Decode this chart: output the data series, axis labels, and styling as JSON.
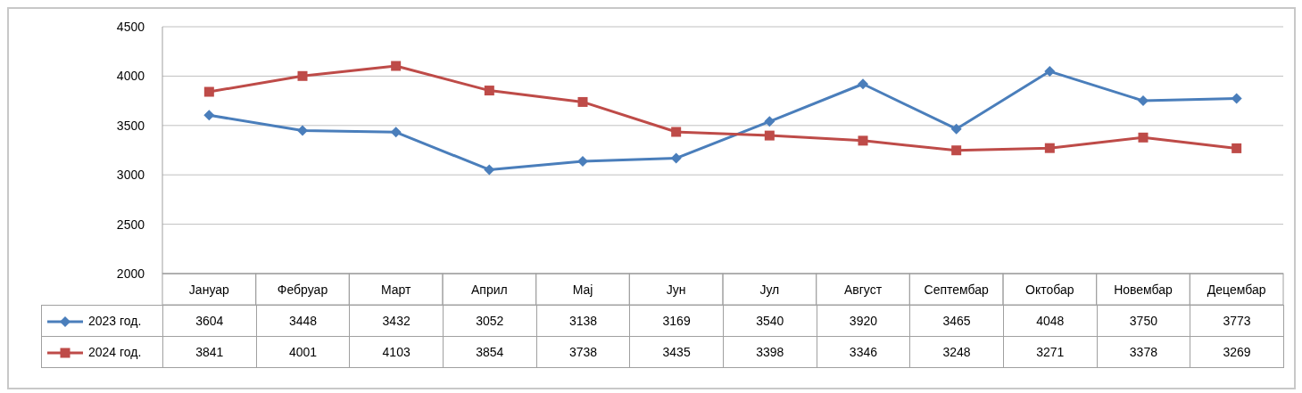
{
  "chart_data": {
    "type": "line",
    "categories": [
      "Јануар",
      "Фебруар",
      "Март",
      "Април",
      "Мај",
      "Јун",
      "Јул",
      "Август",
      "Септембар",
      "Октобар",
      "Новембар",
      "Децембар"
    ],
    "series": [
      {
        "name": "2023 год.",
        "color": "#4a7ebb",
        "marker": "diamond",
        "values": [
          3604,
          3448,
          3432,
          3052,
          3138,
          3169,
          3540,
          3920,
          3465,
          4048,
          3750,
          3773
        ]
      },
      {
        "name": "2024 год.",
        "color": "#be4b48",
        "marker": "square",
        "values": [
          3841,
          4001,
          4103,
          3854,
          3738,
          3435,
          3398,
          3346,
          3248,
          3271,
          3378,
          3269
        ]
      }
    ],
    "ylim": [
      2000,
      4500
    ],
    "yticks": [
      2000,
      2500,
      3000,
      3500,
      4000,
      4500
    ],
    "grid": "y",
    "legend": "bottom",
    "data_labels": true
  }
}
